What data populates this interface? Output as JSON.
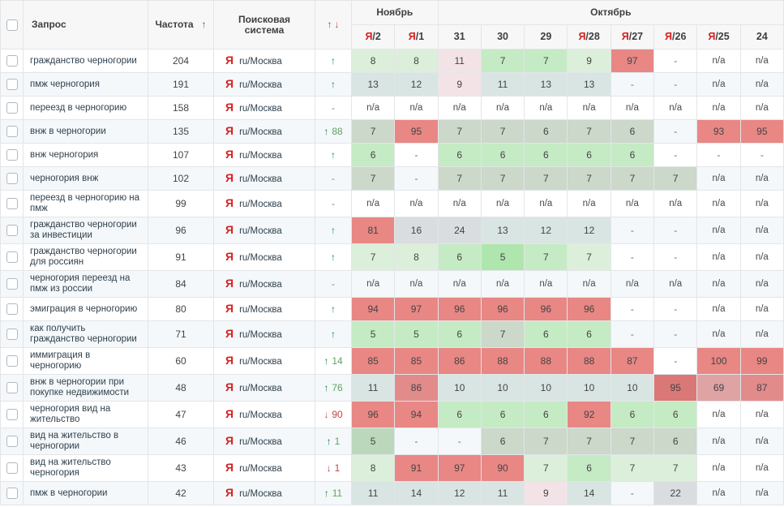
{
  "header": {
    "query": "Запрос",
    "frequency": "Частота",
    "sort_icon": "↑",
    "engine": "Поисковая система",
    "change_up": "↑",
    "change_down": "↓",
    "groups": [
      {
        "label": "Ноябрь",
        "span": 2
      },
      {
        "label": "Октябрь",
        "span": 8
      }
    ],
    "dates": [
      {
        "ya": true,
        "day": "2"
      },
      {
        "ya": true,
        "day": "1"
      },
      {
        "ya": false,
        "day": "31"
      },
      {
        "ya": false,
        "day": "30"
      },
      {
        "ya": false,
        "day": "29"
      },
      {
        "ya": true,
        "day": "28"
      },
      {
        "ya": true,
        "day": "27"
      },
      {
        "ya": true,
        "day": "26"
      },
      {
        "ya": true,
        "day": "25"
      },
      {
        "ya": false,
        "day": "24"
      }
    ]
  },
  "engine": {
    "icon": "Я",
    "region": "ru/Москва"
  },
  "colors": {
    "yandex_red": "#d6201f",
    "up_green": "#178a43",
    "down_red": "#c44343",
    "header_bg": "#f7f7f7",
    "row_alt_bg": "#f4f8fa",
    "border": "#e3e5e7"
  },
  "palette": {
    "g1": "#dcefdb",
    "g2": "#c5ebc4",
    "g3": "#aee6ad",
    "gg": "#cbd8ca",
    "gg2": "#bcd8bc",
    "tg": "#d9e5e3",
    "gy": "#d9dde0",
    "pk": "#f3e3e7",
    "r": "#e88784",
    "r2": "#da7878",
    "r3": "#dfa3a3",
    "r4": "#e18b8b"
  },
  "rows": [
    {
      "query": "гражданство черногории",
      "frequency": "204",
      "change": {
        "dir": "up",
        "value": ""
      },
      "cells": [
        [
          "8",
          "g1"
        ],
        [
          "8",
          "g1"
        ],
        [
          "11",
          "pk"
        ],
        [
          "7",
          "g2"
        ],
        [
          "7",
          "g2"
        ],
        [
          "9",
          "g1"
        ],
        [
          "97",
          "r"
        ],
        [
          "-",
          ""
        ],
        [
          "n/a",
          ""
        ],
        [
          "n/a",
          ""
        ]
      ]
    },
    {
      "query": "пмж черногория",
      "frequency": "191",
      "change": {
        "dir": "up",
        "value": ""
      },
      "cells": [
        [
          "13",
          "tg"
        ],
        [
          "12",
          "tg"
        ],
        [
          "9",
          "pk"
        ],
        [
          "11",
          "tg"
        ],
        [
          "13",
          "tg"
        ],
        [
          "13",
          "tg"
        ],
        [
          "-",
          ""
        ],
        [
          "-",
          ""
        ],
        [
          "n/a",
          ""
        ],
        [
          "n/a",
          ""
        ]
      ]
    },
    {
      "query": "переезд в черногорию",
      "frequency": "158",
      "change": {
        "dir": "none",
        "value": ""
      },
      "cells": [
        [
          "n/a",
          ""
        ],
        [
          "n/a",
          ""
        ],
        [
          "n/a",
          ""
        ],
        [
          "n/a",
          ""
        ],
        [
          "n/a",
          ""
        ],
        [
          "n/a",
          ""
        ],
        [
          "n/a",
          ""
        ],
        [
          "n/a",
          ""
        ],
        [
          "n/a",
          ""
        ],
        [
          "n/a",
          ""
        ]
      ]
    },
    {
      "query": "внж в черногории",
      "frequency": "135",
      "change": {
        "dir": "up",
        "value": "88"
      },
      "cells": [
        [
          "7",
          "gg"
        ],
        [
          "95",
          "r"
        ],
        [
          "7",
          "gg"
        ],
        [
          "7",
          "gg"
        ],
        [
          "6",
          "gg"
        ],
        [
          "7",
          "gg"
        ],
        [
          "6",
          "gg"
        ],
        [
          "-",
          ""
        ],
        [
          "93",
          "r"
        ],
        [
          "95",
          "r"
        ]
      ]
    },
    {
      "query": "внж черногория",
      "frequency": "107",
      "change": {
        "dir": "up",
        "value": ""
      },
      "cells": [
        [
          "6",
          "g2"
        ],
        [
          "-",
          ""
        ],
        [
          "6",
          "g2"
        ],
        [
          "6",
          "g2"
        ],
        [
          "6",
          "g2"
        ],
        [
          "6",
          "g2"
        ],
        [
          "6",
          "g2"
        ],
        [
          "-",
          ""
        ],
        [
          "-",
          ""
        ],
        [
          "-",
          ""
        ]
      ]
    },
    {
      "query": "черногория внж",
      "frequency": "102",
      "change": {
        "dir": "none",
        "value": ""
      },
      "cells": [
        [
          "7",
          "gg"
        ],
        [
          "-",
          ""
        ],
        [
          "7",
          "gg"
        ],
        [
          "7",
          "gg"
        ],
        [
          "7",
          "gg"
        ],
        [
          "7",
          "gg"
        ],
        [
          "7",
          "gg"
        ],
        [
          "7",
          "gg"
        ],
        [
          "n/a",
          ""
        ],
        [
          "n/a",
          ""
        ]
      ]
    },
    {
      "query": "переезд в черногорию на пмж",
      "frequency": "99",
      "change": {
        "dir": "none",
        "value": ""
      },
      "cells": [
        [
          "n/a",
          ""
        ],
        [
          "n/a",
          ""
        ],
        [
          "n/a",
          ""
        ],
        [
          "n/a",
          ""
        ],
        [
          "n/a",
          ""
        ],
        [
          "n/a",
          ""
        ],
        [
          "n/a",
          ""
        ],
        [
          "n/a",
          ""
        ],
        [
          "n/a",
          ""
        ],
        [
          "n/a",
          ""
        ]
      ]
    },
    {
      "query": "гражданство черногории за инвестиции",
      "frequency": "96",
      "change": {
        "dir": "up",
        "value": ""
      },
      "cells": [
        [
          "81",
          "r"
        ],
        [
          "16",
          "gy"
        ],
        [
          "24",
          "gy"
        ],
        [
          "13",
          "tg"
        ],
        [
          "12",
          "tg"
        ],
        [
          "12",
          "tg"
        ],
        [
          "-",
          ""
        ],
        [
          "-",
          ""
        ],
        [
          "n/a",
          ""
        ],
        [
          "n/a",
          ""
        ]
      ]
    },
    {
      "query": "гражданство черногории для россиян",
      "frequency": "91",
      "change": {
        "dir": "up",
        "value": ""
      },
      "cells": [
        [
          "7",
          "g1"
        ],
        [
          "8",
          "g1"
        ],
        [
          "6",
          "g2"
        ],
        [
          "5",
          "g3"
        ],
        [
          "7",
          "g2"
        ],
        [
          "7",
          "g1"
        ],
        [
          "-",
          ""
        ],
        [
          "-",
          ""
        ],
        [
          "n/a",
          ""
        ],
        [
          "n/a",
          ""
        ]
      ]
    },
    {
      "query": "черногория переезд на пмж из россии",
      "frequency": "84",
      "change": {
        "dir": "none",
        "value": ""
      },
      "cells": [
        [
          "n/a",
          ""
        ],
        [
          "n/a",
          ""
        ],
        [
          "n/a",
          ""
        ],
        [
          "n/a",
          ""
        ],
        [
          "n/a",
          ""
        ],
        [
          "n/a",
          ""
        ],
        [
          "n/a",
          ""
        ],
        [
          "n/a",
          ""
        ],
        [
          "n/a",
          ""
        ],
        [
          "n/a",
          ""
        ]
      ]
    },
    {
      "query": "эмиграция в черногорию",
      "frequency": "80",
      "change": {
        "dir": "up",
        "value": ""
      },
      "cells": [
        [
          "94",
          "r"
        ],
        [
          "97",
          "r"
        ],
        [
          "96",
          "r"
        ],
        [
          "96",
          "r"
        ],
        [
          "96",
          "r"
        ],
        [
          "96",
          "r"
        ],
        [
          "-",
          ""
        ],
        [
          "-",
          ""
        ],
        [
          "n/a",
          ""
        ],
        [
          "n/a",
          ""
        ]
      ]
    },
    {
      "query": "как получить гражданство черногории",
      "frequency": "71",
      "change": {
        "dir": "up",
        "value": ""
      },
      "cells": [
        [
          "5",
          "g2"
        ],
        [
          "5",
          "g2"
        ],
        [
          "6",
          "g2"
        ],
        [
          "7",
          "gg"
        ],
        [
          "6",
          "g2"
        ],
        [
          "6",
          "g2"
        ],
        [
          "-",
          ""
        ],
        [
          "-",
          ""
        ],
        [
          "n/a",
          ""
        ],
        [
          "n/a",
          ""
        ]
      ]
    },
    {
      "query": "иммиграция в черногорию",
      "frequency": "60",
      "change": {
        "dir": "up",
        "value": "14"
      },
      "cells": [
        [
          "85",
          "r"
        ],
        [
          "85",
          "r"
        ],
        [
          "86",
          "r"
        ],
        [
          "88",
          "r"
        ],
        [
          "88",
          "r"
        ],
        [
          "88",
          "r"
        ],
        [
          "87",
          "r"
        ],
        [
          "-",
          ""
        ],
        [
          "100",
          "r"
        ],
        [
          "99",
          "r"
        ]
      ]
    },
    {
      "query": "внж в черногории при покупке недвижимости",
      "frequency": "48",
      "change": {
        "dir": "up",
        "value": "76"
      },
      "cells": [
        [
          "11",
          "tg"
        ],
        [
          "86",
          "r4"
        ],
        [
          "10",
          "tg"
        ],
        [
          "10",
          "tg"
        ],
        [
          "10",
          "tg"
        ],
        [
          "10",
          "tg"
        ],
        [
          "10",
          "tg"
        ],
        [
          "95",
          "r2"
        ],
        [
          "69",
          "r3"
        ],
        [
          "87",
          "r4"
        ]
      ]
    },
    {
      "query": "черногория вид на жительство",
      "frequency": "47",
      "change": {
        "dir": "down",
        "value": "90"
      },
      "cells": [
        [
          "96",
          "r"
        ],
        [
          "94",
          "r"
        ],
        [
          "6",
          "g2"
        ],
        [
          "6",
          "g2"
        ],
        [
          "6",
          "g2"
        ],
        [
          "92",
          "r"
        ],
        [
          "6",
          "g2"
        ],
        [
          "6",
          "g2"
        ],
        [
          "n/a",
          ""
        ],
        [
          "n/a",
          ""
        ]
      ]
    },
    {
      "query": "вид на жительство в черногории",
      "frequency": "46",
      "change": {
        "dir": "up",
        "value": "1"
      },
      "cells": [
        [
          "5",
          "gg2"
        ],
        [
          "-",
          ""
        ],
        [
          "-",
          ""
        ],
        [
          "6",
          "gg"
        ],
        [
          "7",
          "gg"
        ],
        [
          "7",
          "gg"
        ],
        [
          "7",
          "gg"
        ],
        [
          "6",
          "gg"
        ],
        [
          "n/a",
          ""
        ],
        [
          "n/a",
          ""
        ]
      ]
    },
    {
      "query": "вид на жительство черногория",
      "frequency": "43",
      "change": {
        "dir": "down",
        "value": "1"
      },
      "cells": [
        [
          "8",
          "g1"
        ],
        [
          "91",
          "r"
        ],
        [
          "97",
          "r"
        ],
        [
          "90",
          "r"
        ],
        [
          "7",
          "g1"
        ],
        [
          "6",
          "g2"
        ],
        [
          "7",
          "g1"
        ],
        [
          "7",
          "g1"
        ],
        [
          "n/a",
          ""
        ],
        [
          "n/a",
          ""
        ]
      ]
    },
    {
      "query": "пмж в черногории",
      "frequency": "42",
      "change": {
        "dir": "up",
        "value": "11"
      },
      "cells": [
        [
          "11",
          "tg"
        ],
        [
          "14",
          "tg"
        ],
        [
          "12",
          "tg"
        ],
        [
          "11",
          "tg"
        ],
        [
          "9",
          "pk"
        ],
        [
          "14",
          "tg"
        ],
        [
          "-",
          ""
        ],
        [
          "22",
          "gy"
        ],
        [
          "n/a",
          ""
        ],
        [
          "n/a",
          ""
        ]
      ]
    }
  ]
}
